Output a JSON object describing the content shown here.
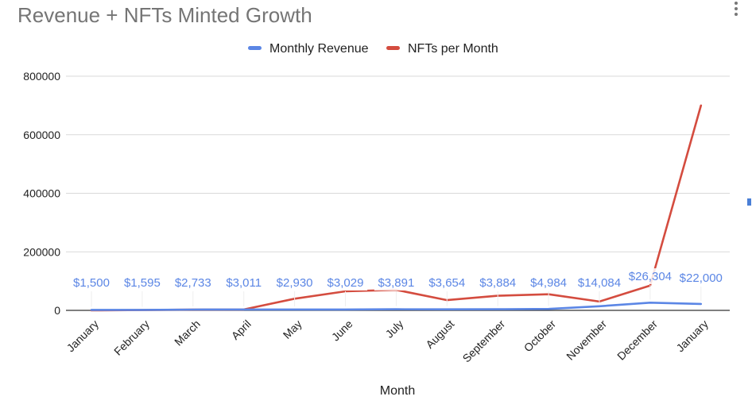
{
  "chart_data": {
    "type": "line",
    "title": "Revenue + NFTs Minted Growth",
    "xlabel": "Month",
    "ylabel": "",
    "ylim": [
      0,
      800000
    ],
    "yticks": [
      0,
      200000,
      400000,
      600000,
      800000
    ],
    "ytick_labels": [
      "0",
      "200000",
      "400000",
      "600000",
      "800000"
    ],
    "categories": [
      "January",
      "February",
      "March",
      "April",
      "May",
      "June",
      "July",
      "August",
      "September",
      "October",
      "November",
      "December",
      "January"
    ],
    "legend_position": "top-center",
    "grid": true,
    "series": [
      {
        "name": "Monthly Revenue",
        "color": "#5b86e5",
        "values": [
          1500,
          1595,
          2733,
          3011,
          2930,
          3029,
          3891,
          3654,
          3884,
          4984,
          14084,
          26304,
          22000
        ],
        "data_labels": [
          "$1,500",
          "$1,595",
          "$2,733",
          "$3,011",
          "$2,930",
          "$3,029",
          "$3,891",
          "$3,654",
          "$3,884",
          "$4,984",
          "$14,084",
          "$26,304",
          "$22,000"
        ]
      },
      {
        "name": "NFTs per Month",
        "color": "#d44c3f",
        "values": [
          0,
          1000,
          2500,
          3000,
          40000,
          65000,
          70000,
          35000,
          50000,
          55000,
          30000,
          85000,
          700000
        ]
      }
    ]
  }
}
